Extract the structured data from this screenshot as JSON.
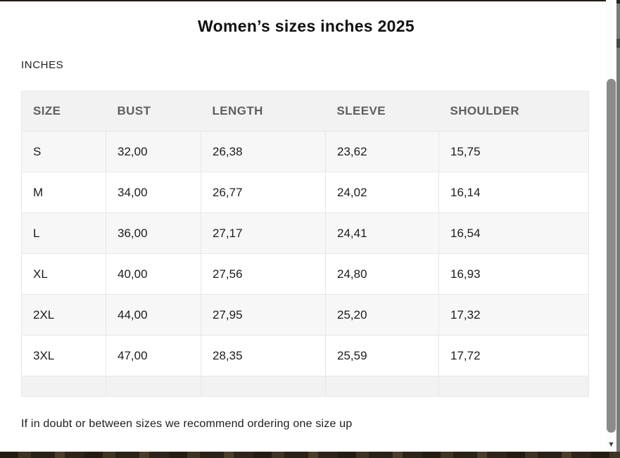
{
  "title": "Women’s sizes inches 2025",
  "section_label": "INCHES",
  "note": "If in doubt or between sizes we recommend ordering one size up",
  "table": {
    "columns": [
      "SIZE",
      "BUST",
      "LENGTH",
      "SLEEVE",
      "SHOULDER"
    ],
    "rows": [
      [
        "S",
        "32,00",
        "26,38",
        "23,62",
        "15,75"
      ],
      [
        "M",
        "34,00",
        "26,77",
        "24,02",
        "16,14"
      ],
      [
        "L",
        "36,00",
        "27,17",
        "24,41",
        "16,54"
      ],
      [
        "XL",
        "40,00",
        "27,56",
        "24,80",
        "16,93"
      ],
      [
        "2XL",
        "44,00",
        "27,95",
        "25,20",
        "17,32"
      ],
      [
        "3XL",
        "47,00",
        "28,35",
        "25,59",
        "17,72"
      ]
    ]
  },
  "scrollbar": {
    "down_arrow_icon": "▼"
  },
  "colors": {
    "header_text": "#5f5f5f",
    "body_text": "#1c1c1c",
    "header_bg": "#f2f2f2",
    "row_alt_bg": "#f7f7f7",
    "table_border": "#e7e7e7",
    "scrollbar_thumb": "#8b8b8b",
    "page_edge_dark": "#241d16"
  }
}
